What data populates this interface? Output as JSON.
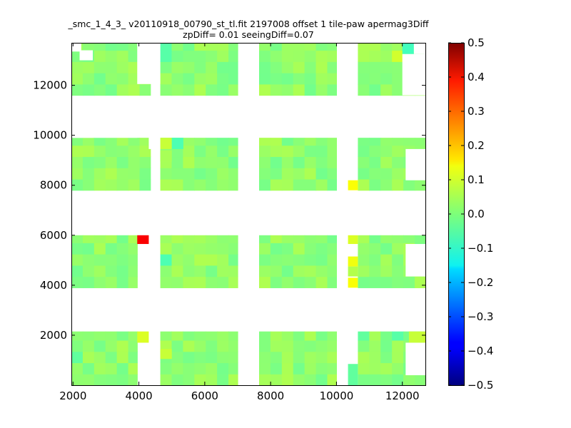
{
  "chart_data": {
    "type": "heatmap",
    "title": "_smc_1_4_3_ v20110918_00790_st_tl.fit 2197008 offset 1 tile-paw apermag3Diff",
    "subtitle": "zpDiff= 0.01 seeingDiff=0.07",
    "xlim": [
      1950,
      12700
    ],
    "ylim": [
      0,
      13700
    ],
    "x_ticks": [
      2000,
      4000,
      6000,
      8000,
      10000,
      12000
    ],
    "x_tick_labels": [
      "2000",
      "4000",
      "6000",
      "8000",
      "10000",
      "12000"
    ],
    "y_ticks": [
      2000,
      4000,
      6000,
      8000,
      10000,
      12000
    ],
    "y_tick_labels": [
      "2000",
      "4000",
      "6000",
      "8000",
      "10000",
      "12000"
    ],
    "colorbar": {
      "colormap": "jet",
      "vmin": -0.5,
      "vmax": 0.5,
      "ticks": [
        0.5,
        0.4,
        0.3,
        0.2,
        0.1,
        0.0,
        -0.1,
        -0.2,
        -0.3,
        -0.4,
        -0.5
      ],
      "tick_labels": [
        "0.5",
        "0.4",
        "0.3",
        "0.2",
        "0.1",
        "0.0",
        "−0.1",
        "−0.2",
        "−0.3",
        "−0.4",
        "−0.5"
      ]
    },
    "cell_size": [
      345,
      450
    ],
    "base_value": 0.02,
    "detectors": [
      {
        "x": [
          1950,
          3950
        ],
        "y": [
          0,
          2150
        ]
      },
      {
        "x": [
          4650,
          7000
        ],
        "y": [
          0,
          2150
        ]
      },
      {
        "x": [
          7650,
          10000
        ],
        "y": [
          0,
          2150
        ]
      },
      {
        "x": [
          10650,
          12700
        ],
        "y": [
          0,
          2150
        ]
      },
      {
        "x": [
          1950,
          3950
        ],
        "y": [
          3900,
          6000
        ]
      },
      {
        "x": [
          4650,
          7000
        ],
        "y": [
          3900,
          6000
        ]
      },
      {
        "x": [
          7650,
          10000
        ],
        "y": [
          3900,
          6000
        ]
      },
      {
        "x": [
          10650,
          12700
        ],
        "y": [
          3900,
          6000
        ]
      },
      {
        "x": [
          1950,
          4350
        ],
        "y": [
          7800,
          9900
        ]
      },
      {
        "x": [
          4650,
          7000
        ],
        "y": [
          7800,
          9900
        ]
      },
      {
        "x": [
          7650,
          10000
        ],
        "y": [
          7800,
          9900
        ]
      },
      {
        "x": [
          10650,
          12700
        ],
        "y": [
          7800,
          9900
        ]
      },
      {
        "x": [
          1950,
          4350
        ],
        "y": [
          11600,
          13700
        ]
      },
      {
        "x": [
          4650,
          7000
        ],
        "y": [
          11600,
          13700
        ]
      },
      {
        "x": [
          7650,
          10000
        ],
        "y": [
          11600,
          13700
        ]
      },
      {
        "x": [
          10650,
          12700
        ],
        "y": [
          11600,
          13700
        ]
      }
    ],
    "extra_cells": [
      {
        "x": [
          3950,
          4300
        ],
        "y": [
          5650,
          6000
        ],
        "value": 0.38
      },
      {
        "x": [
          3950,
          4300
        ],
        "y": [
          1700,
          2150
        ],
        "value": 0.09
      },
      {
        "x": [
          4650,
          5000
        ],
        "y": [
          1050,
          1450
        ],
        "value": 0.07
      },
      {
        "x": [
          4650,
          5000
        ],
        "y": [
          9450,
          9900
        ],
        "value": 0.07
      },
      {
        "x": [
          4650,
          5000
        ],
        "y": [
          8950,
          9400
        ],
        "value": 0.04
      },
      {
        "x": [
          5000,
          5350
        ],
        "y": [
          9450,
          9900
        ],
        "value": -0.05
      },
      {
        "x": [
          10350,
          10650
        ],
        "y": [
          7800,
          8200
        ],
        "value": 0.12
      },
      {
        "x": [
          10350,
          10650
        ],
        "y": [
          5650,
          6000
        ],
        "value": 0.09
      },
      {
        "x": [
          10350,
          10650
        ],
        "y": [
          4750,
          5150
        ],
        "value": 0.11
      },
      {
        "x": [
          10350,
          10650
        ],
        "y": [
          4350,
          4750
        ],
        "value": 0.05
      },
      {
        "x": [
          10350,
          10650
        ],
        "y": [
          3900,
          4300
        ],
        "value": 0.12
      },
      {
        "x": [
          10350,
          10650
        ],
        "y": [
          0,
          850
        ],
        "value": -0.03
      },
      {
        "x": [
          12200,
          12700
        ],
        "y": [
          1700,
          2150
        ],
        "value": 0.07
      },
      {
        "x": [
          12000,
          12350
        ],
        "y": [
          13250,
          13700
        ],
        "value": -0.06
      }
    ],
    "cell_overrides": [
      {
        "x": [
          11750,
          12000
        ],
        "y": [
          1700,
          2150
        ],
        "value": -0.04
      },
      {
        "x": [
          10650,
          11000
        ],
        "y": [
          1700,
          2150
        ],
        "value": -0.03
      },
      {
        "x": [
          11700,
          12000
        ],
        "y": [
          11600,
          12900
        ],
        "value": 0.01
      },
      {
        "x": [
          11700,
          12000
        ],
        "y": [
          12900,
          13250
        ],
        "value": 0.08
      },
      {
        "x": [
          4650,
          5000
        ],
        "y": [
          12900,
          13700
        ],
        "value": -0.04
      },
      {
        "x": [
          4650,
          5000
        ],
        "y": [
          5000,
          5400
        ],
        "value": -0.05
      },
      {
        "x": [
          1950,
          2250
        ],
        "y": [
          1050,
          1450
        ],
        "value": -0.03
      }
    ],
    "holes": [
      {
        "x": [
          1950,
          3950
        ],
        "y": [
          9900,
          10700
        ]
      },
      {
        "x": [
          4300,
          4650
        ],
        "y": [
          9450,
          10700
        ]
      },
      {
        "x": [
          1950,
          2600
        ],
        "y": [
          9900,
          10700
        ]
      },
      {
        "x": [
          3950,
          4650
        ],
        "y": [
          12050,
          13700
        ]
      },
      {
        "x": [
          2200,
          2600
        ],
        "y": [
          13000,
          13400
        ]
      },
      {
        "x": [
          1950,
          2250
        ],
        "y": [
          13350,
          13700
        ]
      },
      {
        "x": [
          12000,
          12700
        ],
        "y": [
          11600,
          13250
        ]
      },
      {
        "x": [
          12350,
          12700
        ],
        "y": [
          13250,
          13700
        ]
      },
      {
        "x": [
          12100,
          12700
        ],
        "y": [
          8200,
          9450
        ]
      },
      {
        "x": [
          12100,
          12700
        ],
        "y": [
          4350,
          5650
        ]
      },
      {
        "x": [
          12100,
          12700
        ],
        "y": [
          400,
          1700
        ]
      }
    ]
  }
}
